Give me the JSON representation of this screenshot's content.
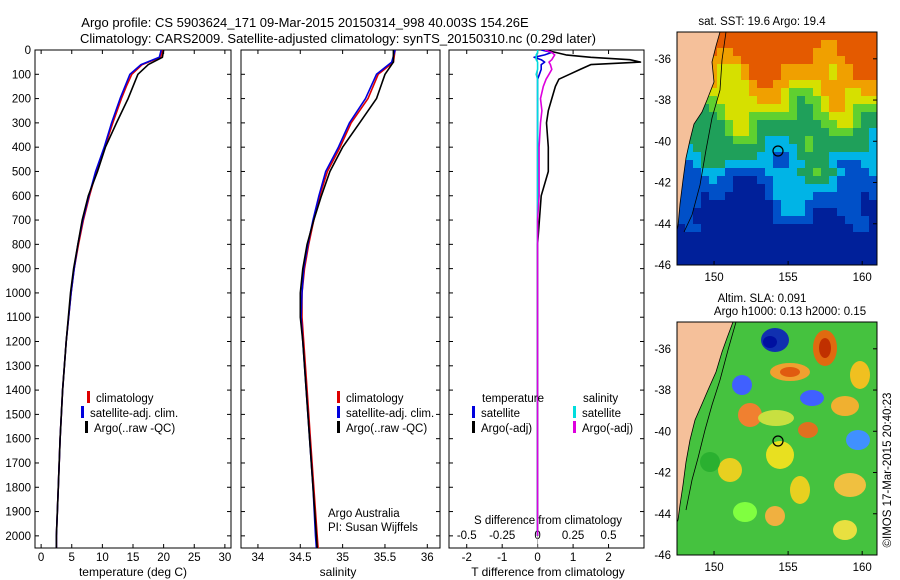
{
  "header": {
    "line1": "Argo profile: CS 5903624_171 09-Mar-2015 20150314_998 40.003S 154.26E",
    "line2": "Climatology: CARS2009. Satellite-adjusted climatology: synTS_20150310.nc (0.29d later)"
  },
  "colors": {
    "climatology": "#dd0000",
    "satellite": "#0000dd",
    "argo": "#000000",
    "s_satellite": "#00dddd",
    "s_argo": "#dd00dd",
    "land": "#f5c09a"
  },
  "chart_data": [
    {
      "type": "line",
      "panel": "temperature",
      "xlabel": "temperature (deg C)",
      "xlim": [
        -1,
        31
      ],
      "ylim": [
        2050,
        0
      ],
      "xticks": [
        "0",
        "5",
        "10",
        "15",
        "20",
        "25",
        "30"
      ],
      "yticks": [
        "0",
        "100",
        "200",
        "300",
        "400",
        "500",
        "600",
        "700",
        "800",
        "900",
        "1000",
        "1100",
        "1200",
        "1300",
        "1400",
        "1500",
        "1600",
        "1700",
        "1800",
        "1900",
        "2000"
      ],
      "depth": [
        0,
        30,
        60,
        100,
        150,
        200,
        300,
        400,
        500,
        600,
        700,
        800,
        900,
        1000,
        1200,
        1400,
        1600,
        1800,
        2000,
        2050
      ],
      "series": [
        {
          "name": "climatology",
          "color": "#dd0000",
          "values": [
            19.8,
            19.5,
            16.5,
            14.8,
            13.9,
            13.1,
            11.7,
            10.4,
            9.0,
            7.9,
            6.9,
            6.1,
            5.4,
            4.9,
            4.1,
            3.5,
            3.1,
            2.8,
            2.5,
            2.5
          ]
        },
        {
          "name": "satellite-adj. clim.",
          "color": "#0000dd",
          "values": [
            19.6,
            19.3,
            16.3,
            14.5,
            13.7,
            12.9,
            11.5,
            10.3,
            8.9,
            7.8,
            6.8,
            6.0,
            5.4,
            4.9,
            4.1,
            3.5,
            3.1,
            2.8,
            2.5,
            2.5
          ]
        },
        {
          "name": "Argo(..raw -QC)",
          "color": "#000000",
          "values": [
            20.0,
            19.8,
            17.5,
            15.8,
            15.0,
            14.2,
            12.3,
            10.5,
            9.2,
            7.7,
            6.7,
            6.0,
            5.3,
            4.8,
            4.1,
            3.5,
            3.1,
            2.8,
            2.5,
            2.5
          ]
        }
      ],
      "legend": [
        "climatology",
        "satellite-adj. clim.",
        "Argo(..raw -QC)"
      ]
    },
    {
      "type": "line",
      "panel": "salinity",
      "xlabel": "salinity",
      "xlim": [
        33.8,
        36.15
      ],
      "ylim": [
        2050,
        0
      ],
      "xticks": [
        "34",
        "34.5",
        "35",
        "35.5",
        "36"
      ],
      "depth": [
        0,
        50,
        100,
        200,
        300,
        400,
        500,
        600,
        700,
        800,
        900,
        1000,
        1100,
        1200,
        1400,
        1600,
        1800,
        2000,
        2050
      ],
      "series": [
        {
          "name": "climatology",
          "color": "#dd0000",
          "values": [
            35.62,
            35.6,
            35.42,
            35.3,
            35.1,
            34.97,
            34.82,
            34.73,
            34.66,
            34.6,
            34.55,
            34.52,
            34.52,
            34.54,
            34.58,
            34.62,
            34.66,
            34.7,
            34.71
          ]
        },
        {
          "name": "satellite-adj. clim.",
          "color": "#0000dd",
          "values": [
            35.62,
            35.58,
            35.4,
            35.27,
            35.08,
            34.95,
            34.8,
            34.72,
            34.65,
            34.59,
            34.54,
            34.52,
            34.51,
            34.53,
            34.57,
            34.61,
            34.65,
            34.68,
            34.69
          ]
        },
        {
          "name": "Argo(..raw -QC)",
          "color": "#000000",
          "values": [
            35.6,
            35.6,
            35.5,
            35.4,
            35.2,
            35.0,
            34.85,
            34.75,
            34.66,
            34.58,
            34.53,
            34.5,
            34.5,
            34.53,
            34.57,
            34.61,
            34.65,
            34.69,
            34.7
          ]
        }
      ],
      "legend": [
        "climatology",
        "satellite-adj. clim.",
        "Argo(..raw -QC)"
      ],
      "annotation": [
        "Argo Australia",
        "PI: Susan Wijffels"
      ]
    },
    {
      "type": "line",
      "panel": "difference",
      "xlabel": "T difference from climatology",
      "xlabel_top": "S difference from climatology",
      "xlim": [
        -2.5,
        3.0
      ],
      "xlim_salinity": [
        -0.625,
        0.75
      ],
      "ylim": [
        2050,
        0
      ],
      "xticks": [
        "-2",
        "-1",
        "0",
        "1",
        "2"
      ],
      "xticks_salinity": [
        "-0.5",
        "-0.25",
        "0",
        "0.25",
        "0.5"
      ],
      "depth": [
        0,
        10,
        20,
        30,
        40,
        50,
        60,
        80,
        100,
        120,
        150,
        200,
        250,
        300,
        400,
        500,
        600,
        700,
        800,
        900,
        1000,
        1200,
        1500,
        2000
      ],
      "series": [
        {
          "name": "T satellite",
          "color": "#0000dd",
          "values": [
            0.1,
            0.4,
            0.2,
            -0.1,
            0.1,
            0.2,
            0.1,
            0.1,
            0.05,
            0.0,
            0.0,
            0.0,
            0.0,
            0.0,
            0.0,
            0.0,
            0.0,
            0.0,
            0.0,
            0.0,
            0.0,
            0.0,
            0.0,
            0.0
          ]
        },
        {
          "name": "T Argo(-adj)",
          "color": "#000000",
          "values": [
            0.2,
            0.5,
            0.8,
            1.5,
            2.6,
            2.9,
            1.5,
            1.2,
            0.9,
            0.6,
            0.5,
            0.4,
            0.3,
            0.25,
            0.3,
            0.3,
            0.1,
            0.05,
            0.0,
            0.0,
            0.0,
            0.0,
            0.0,
            0.0
          ]
        },
        {
          "name": "S satellite",
          "color": "#00dddd",
          "values": [
            0.0,
            0.0,
            -0.01,
            -0.01,
            -0.01,
            0.0,
            0.0,
            0.0,
            -0.01,
            0.0,
            0.0,
            0.0,
            0.0,
            0.0,
            0.0,
            0.0,
            0.0,
            0.0,
            0.0,
            0.0,
            0.0,
            0.0,
            0.0,
            0.0
          ]
        },
        {
          "name": "S Argo(-adj)",
          "color": "#dd00dd",
          "values": [
            0.05,
            0.1,
            0.12,
            0.11,
            0.1,
            0.08,
            0.09,
            0.1,
            0.08,
            0.06,
            0.04,
            0.02,
            0.03,
            0.02,
            0.01,
            0.01,
            0.01,
            0.0,
            0.0,
            0.0,
            0.0,
            0.0,
            0.0,
            0.0
          ]
        }
      ],
      "legend_t_title": "temperature",
      "legend_s_title": "salinity",
      "legend": [
        "satellite",
        "Argo(-adj)",
        "satellite",
        "Argo(-adj)"
      ]
    },
    {
      "type": "heatmap",
      "panel": "sst-map",
      "title": "sat. SST: 19.6 Argo: 19.4",
      "xlim": [
        147.5,
        161
      ],
      "ylim": [
        -46,
        -34.7
      ],
      "xticks": [
        "150",
        "155",
        "160"
      ],
      "yticks": [
        "-36",
        "-38",
        "-40",
        "-42",
        "-44",
        "-46"
      ],
      "float_position": {
        "lon": 154.26,
        "lat": -40.003
      }
    },
    {
      "type": "heatmap",
      "panel": "sla-map",
      "title": [
        "Altim. SLA: 0.091",
        "Argo h1000: 0.13 h2000: 0.15"
      ],
      "xlim": [
        147.5,
        161
      ],
      "ylim": [
        -46,
        -34.7
      ],
      "xticks": [
        "150",
        "155",
        "160"
      ],
      "yticks": [
        "-36",
        "-38",
        "-40",
        "-42",
        "-44",
        "-46"
      ],
      "float_position": {
        "lon": 154.26,
        "lat": -40.003
      }
    }
  ],
  "footer_stamp": "©IMOS 17-Mar-2015 20:40:23"
}
